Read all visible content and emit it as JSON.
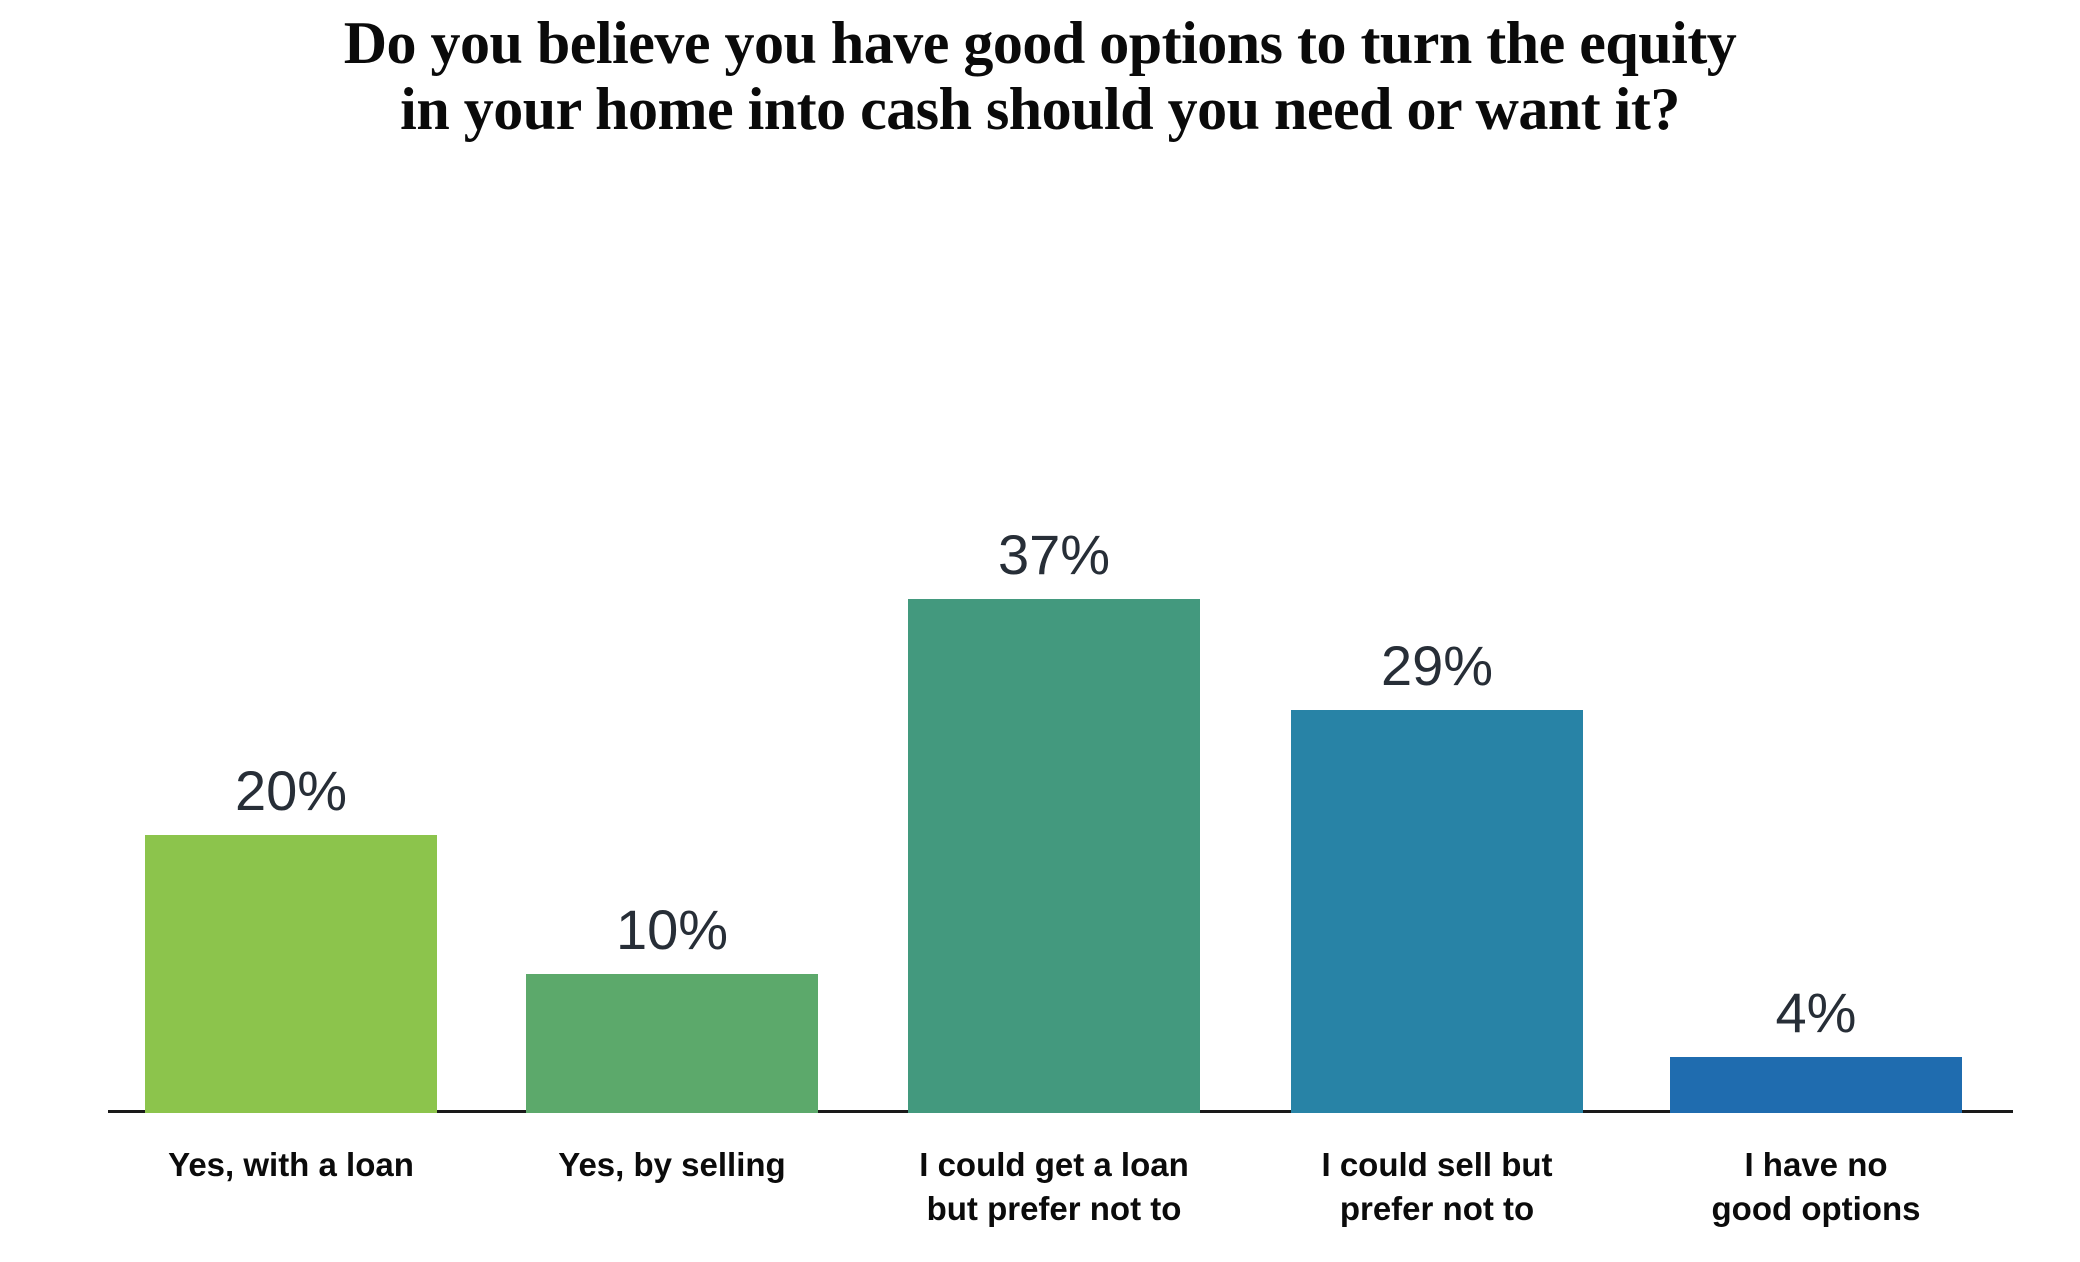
{
  "title": "Do you believe you have good options to turn the equity\nin your home into cash should you need or want it?",
  "chart_data": {
    "type": "bar",
    "title": "Do you believe you have good options to turn the equity in your home into cash should you need or want it?",
    "categories": [
      "Yes, with a loan",
      "Yes, by selling",
      "I could get a loan\nbut prefer not to",
      "I could sell but\nprefer not to",
      "I have no\ngood options"
    ],
    "values": [
      20,
      10,
      37,
      29,
      4
    ],
    "value_labels": [
      "20%",
      "10%",
      "37%",
      "29%",
      "4%"
    ],
    "unit": "%",
    "colors": [
      "#8CC44C",
      "#5CA96B",
      "#43997E",
      "#2883A6",
      "#1F6CAF"
    ],
    "xlabel": "",
    "ylabel": "",
    "ylim": [
      0,
      40
    ],
    "grid": false,
    "legend": false,
    "axis_line_color": "#1a1a1a",
    "value_label_color": "#272e37",
    "category_label_color": "#0b0b0b"
  }
}
